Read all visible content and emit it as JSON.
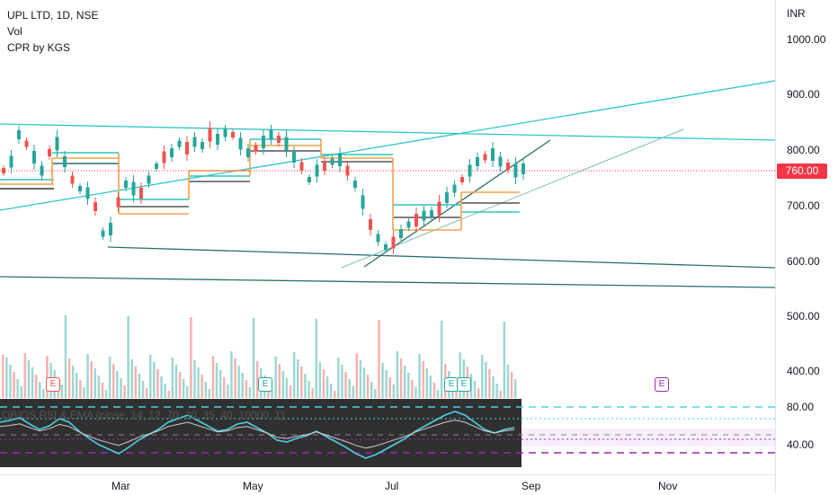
{
  "legend": {
    "symbol": "UPL LTD, 1D, NSE",
    "vol": "Vol",
    "indicator": "CPR by KGS"
  },
  "price_axis": {
    "currency": "INR",
    "ticks": [
      "1000.00",
      "900.00",
      "800.00",
      "700.00",
      "600.00",
      "500.00",
      "400.00"
    ],
    "current_price": "760.00"
  },
  "rsi_axis": {
    "ticks": [
      "80.00",
      "40.00"
    ]
  },
  "rsi_panel": {
    "label": "OB/OS RSI & EMA (close, 14, 12, 70, 30, 35, 40, 10000, 1)"
  },
  "time_axis": {
    "labels": [
      "Mar",
      "May",
      "Jul",
      "Sep",
      "Nov"
    ]
  },
  "earnings_badges": [
    "E",
    "E",
    "E",
    "E",
    "E"
  ],
  "colors": {
    "up": "#26a69a",
    "down": "#ef5350",
    "teal_line": "#2ec4c4",
    "orange": "#f7a24b",
    "dark_line": "#2a6f6a",
    "rsi_bg": "#303030",
    "rsi_line": "#4dd0e1",
    "ema_line": "#cccccc",
    "purple": "#9c27b0",
    "price_tag": "#f23645"
  }
}
